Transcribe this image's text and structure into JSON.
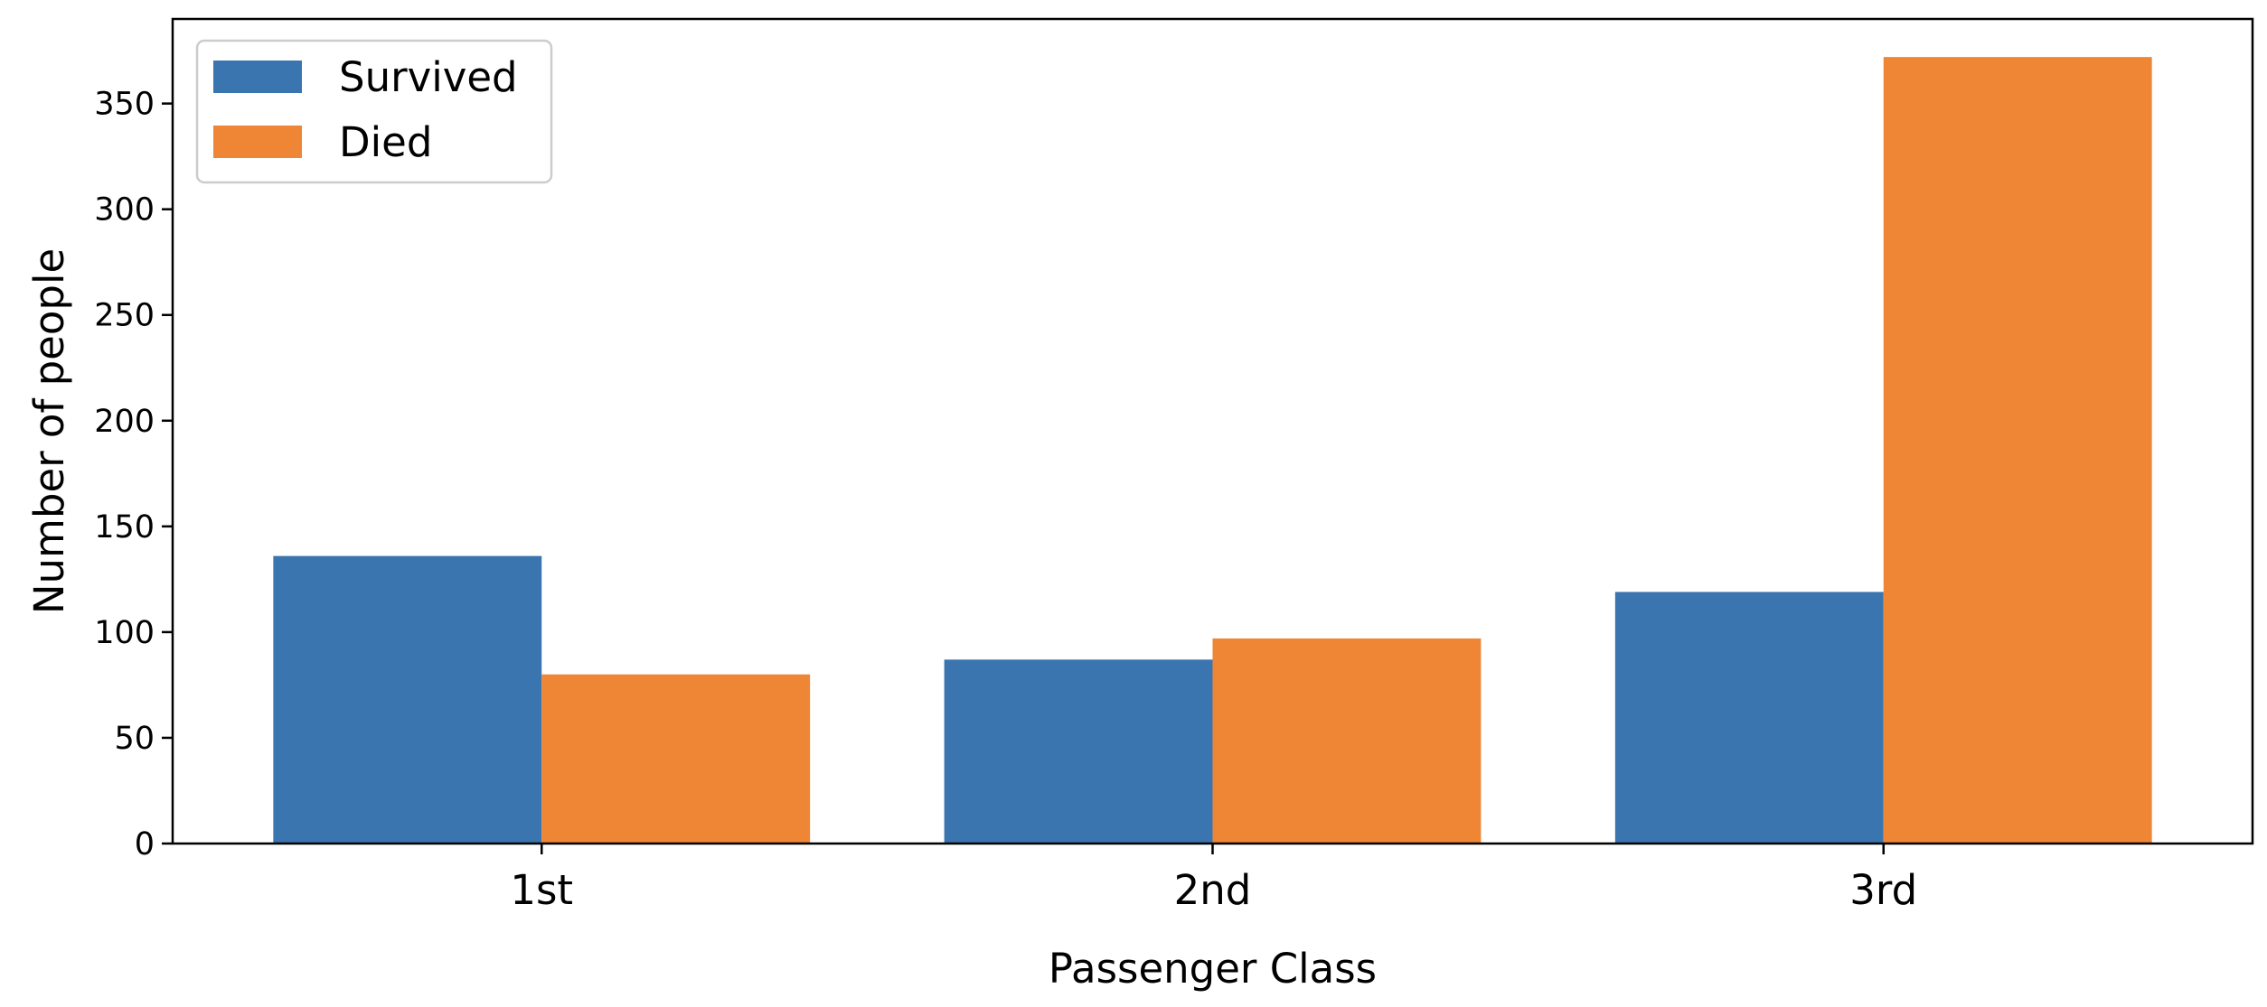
{
  "chart_data": {
    "type": "bar",
    "title": "",
    "xlabel": "Passenger Class",
    "ylabel": "Number of people",
    "categories": [
      "1st",
      "2nd",
      "3rd"
    ],
    "series": [
      {
        "name": "Survived",
        "values": [
          136,
          87,
          119
        ],
        "color": "#3b75af"
      },
      {
        "name": "Died",
        "values": [
          80,
          97,
          372
        ],
        "color": "#ef8636"
      }
    ],
    "ylim": [
      0,
      390
    ],
    "yticks": [
      0,
      50,
      100,
      150,
      200,
      250,
      300,
      350
    ],
    "grid": false,
    "legend_position": "top-left"
  }
}
